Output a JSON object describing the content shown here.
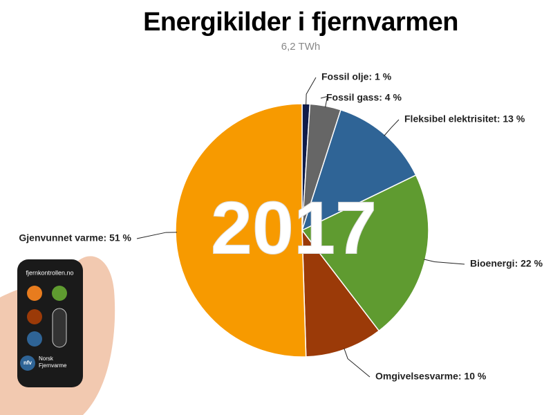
{
  "chart_data": {
    "type": "pie",
    "title": "Energikilder i fjernvarmen",
    "subtitle": "6,2 TWh",
    "values": [
      1,
      4,
      13,
      22,
      10,
      51
    ],
    "value_labels": [
      "Fossil olje: 1 %",
      "Fossil gass: 4 %",
      "Fleksibel elektrisitet: 13 %",
      "Bioenergi: 22 %",
      "Omgivelsesvarme: 10 %",
      "Gjenvunnet varme: 51 %"
    ],
    "colors": [
      "#101c4a",
      "#666666",
      "#2f6496",
      "#5f9b30",
      "#9b3a08",
      "#f79a00"
    ]
  },
  "overlay_text": "2017",
  "remote": {
    "url": "fjernkontrollen.no",
    "logo": "nfv",
    "brand": [
      "Norsk",
      "Fjernvarme"
    ]
  }
}
